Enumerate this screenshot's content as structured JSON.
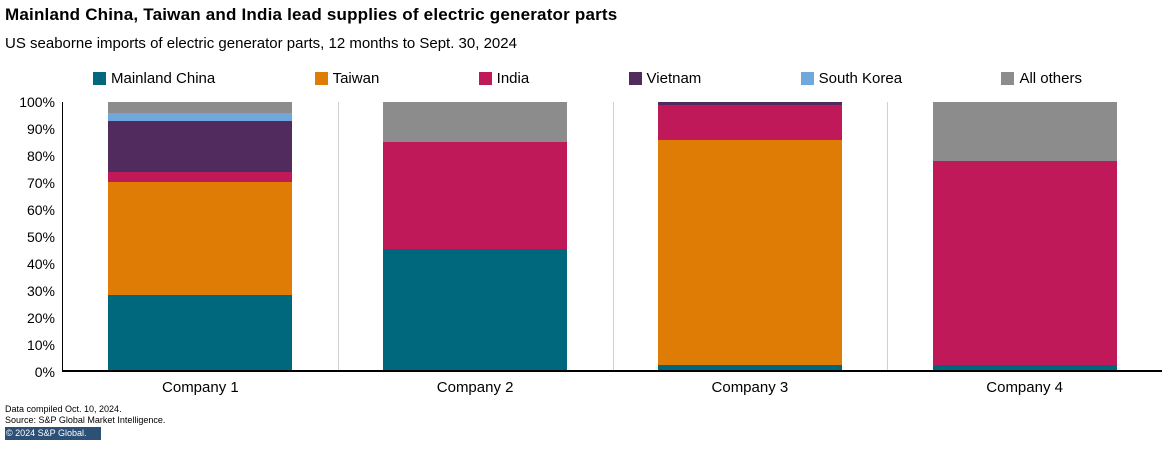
{
  "header": {
    "title": "Mainland China, Taiwan and India lead supplies of electric generator parts",
    "subtitle": "US seaborne imports of electric generator parts, 12 months to Sept. 30, 2024"
  },
  "chart_data": {
    "type": "bar",
    "stacked": true,
    "percent_stacked": true,
    "unit": "%",
    "categories": [
      "Company 1",
      "Company 2",
      "Company 3",
      "Company 4"
    ],
    "series": [
      {
        "name": "Mainland China",
        "color": "#00687D",
        "values": [
          28,
          45,
          2,
          2
        ]
      },
      {
        "name": "Taiwan",
        "color": "#DE7C05",
        "values": [
          42,
          0,
          84,
          0
        ]
      },
      {
        "name": "India",
        "color": "#C01959",
        "values": [
          4,
          40,
          13,
          76
        ]
      },
      {
        "name": "Vietnam",
        "color": "#512B5E",
        "values": [
          19,
          0,
          1,
          0
        ]
      },
      {
        "name": "South Korea",
        "color": "#6FA8DC",
        "values": [
          3,
          0,
          0,
          0
        ]
      },
      {
        "name": "All others",
        "color": "#8C8C8C",
        "values": [
          4,
          15,
          0,
          22
        ]
      }
    ],
    "ylim": [
      0,
      100
    ],
    "yticks": [
      "0%",
      "10%",
      "20%",
      "30%",
      "40%",
      "50%",
      "60%",
      "70%",
      "80%",
      "90%",
      "100%"
    ],
    "legend_position": "top",
    "grid": false
  },
  "footer": {
    "line1": "Data compiled Oct. 10, 2024.",
    "line2": "Source: S&P Global Market Intelligence.",
    "line3": "© 2024 S&P Global.",
    "copyright_bar_color": "#2D5076"
  }
}
